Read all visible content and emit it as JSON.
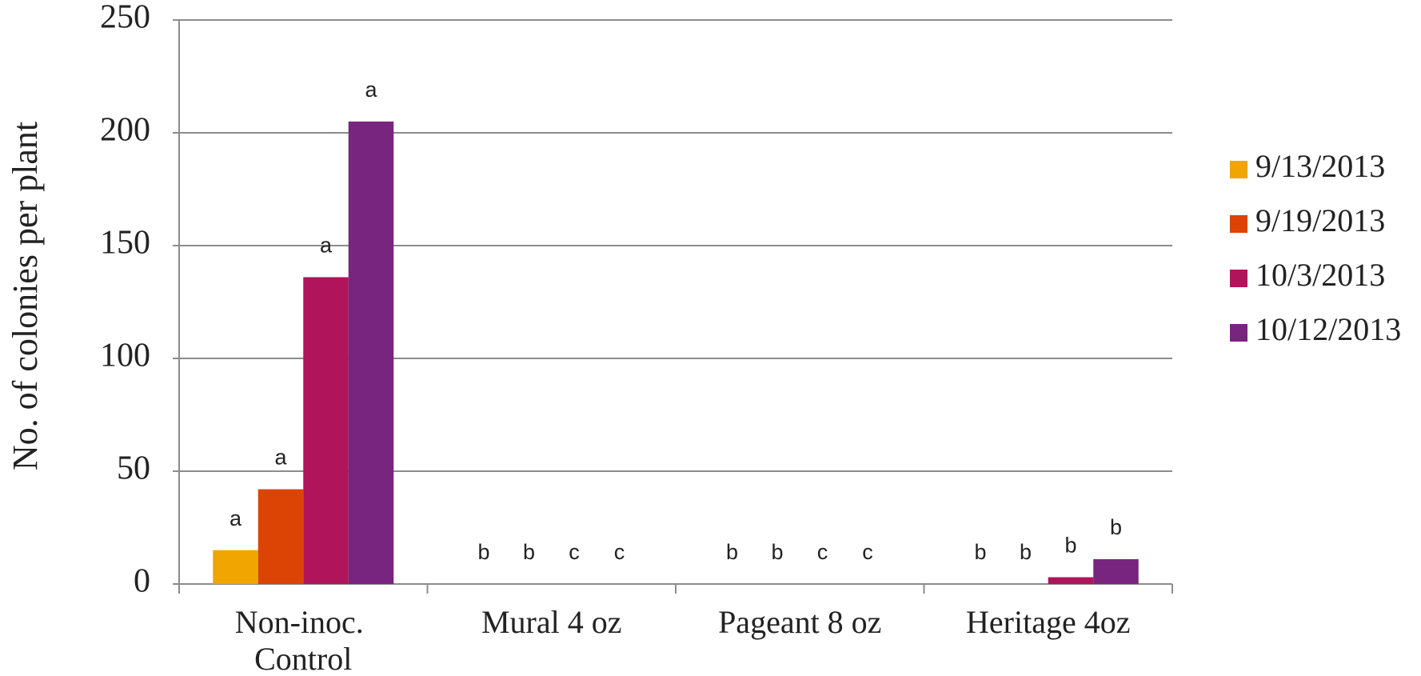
{
  "chart_data": {
    "type": "bar",
    "y_label": "No. of  colonies per plant",
    "categories": [
      "Non-inoc. Control",
      "Mural 4 oz",
      "Pageant 8 oz",
      "Heritage 4oz"
    ],
    "series": [
      {
        "name": "9/13/2013",
        "color": "#f0a500",
        "values": [
          15,
          0,
          0,
          0
        ],
        "letters": [
          "a",
          "b",
          "b",
          "b"
        ]
      },
      {
        "name": "9/19/2013",
        "color": "#dc4405",
        "values": [
          42,
          0,
          0,
          0
        ],
        "letters": [
          "a",
          "b",
          "b",
          "b"
        ]
      },
      {
        "name": "10/3/2013",
        "color": "#b0145a",
        "values": [
          136,
          0,
          0,
          3
        ],
        "letters": [
          "a",
          "c",
          "c",
          "b"
        ]
      },
      {
        "name": "10/12/2013",
        "color": "#77257f",
        "values": [
          205,
          0,
          0,
          11
        ],
        "letters": [
          "a",
          "c",
          "c",
          "b"
        ]
      }
    ],
    "ylim": [
      0,
      250
    ],
    "yticks": [
      0,
      50,
      100,
      150,
      200,
      250
    ],
    "grid": true,
    "legend": "right"
  }
}
